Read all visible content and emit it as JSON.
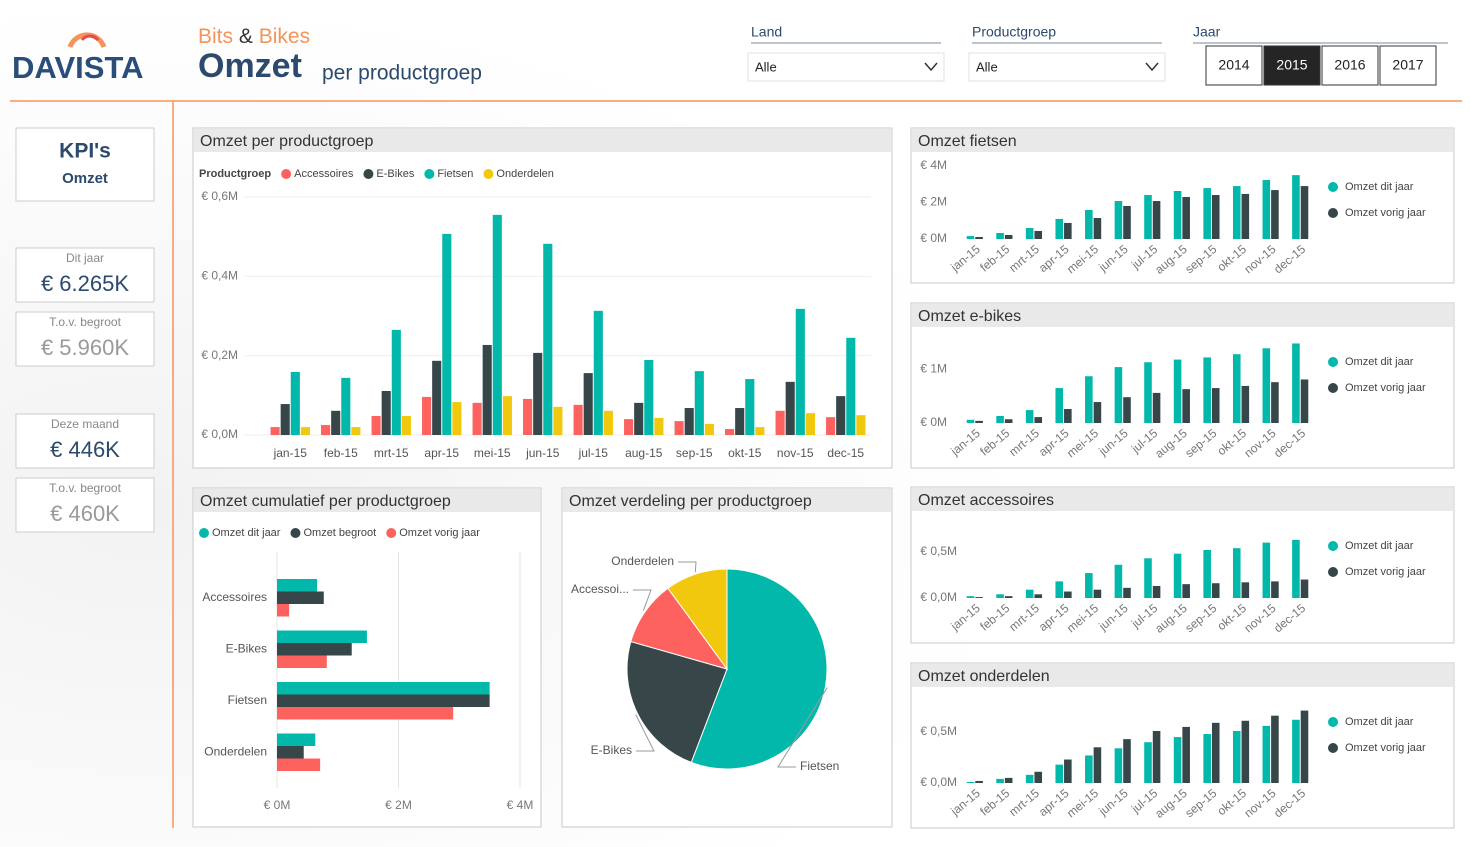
{
  "header": {
    "logo": "DAVISTA",
    "brand_1": "Bits",
    "brand_amp": "&",
    "brand_2": "Bikes",
    "title": "Omzet",
    "subtitle": "per productgroep"
  },
  "filters": {
    "land": {
      "label": "Land",
      "value": "Alle"
    },
    "productgroep": {
      "label": "Productgroep",
      "value": "Alle"
    },
    "jaar": {
      "label": "Jaar",
      "options": [
        "2014",
        "2015",
        "2016",
        "2017"
      ],
      "selected": "2015"
    }
  },
  "kpis": {
    "title": "KPI's",
    "subtitle": "Omzet",
    "cards": [
      {
        "label": "Dit jaar",
        "value": "€ 6.265K"
      },
      {
        "label": "T.o.v. begroot",
        "value": "€ 5.960K"
      },
      {
        "label": "Deze maand",
        "value": "€ 446K"
      },
      {
        "label": "T.o.v. begroot",
        "value": "€ 460K"
      }
    ]
  },
  "chart_data": [
    {
      "type": "bar",
      "title": "Omzet per productgroep",
      "legend_title": "Productgroep",
      "legend": "top",
      "grid": true,
      "categories": [
        "jan-15",
        "feb-15",
        "mrt-15",
        "apr-15",
        "mei-15",
        "jun-15",
        "jul-15",
        "aug-15",
        "sep-15",
        "okt-15",
        "nov-15",
        "dec-15"
      ],
      "series": [
        {
          "name": "Accessoires",
          "color": "#fd625e",
          "values": [
            0.02,
            0.025,
            0.048,
            0.096,
            0.081,
            0.091,
            0.076,
            0.04,
            0.035,
            0.015,
            0.061,
            0.045
          ]
        },
        {
          "name": "E-Bikes",
          "color": "#374649",
          "values": [
            0.078,
            0.061,
            0.111,
            0.187,
            0.227,
            0.207,
            0.156,
            0.081,
            0.068,
            0.068,
            0.134,
            0.098
          ]
        },
        {
          "name": "Fietsen",
          "color": "#01b8aa",
          "values": [
            0.159,
            0.144,
            0.265,
            0.507,
            0.555,
            0.482,
            0.313,
            0.189,
            0.161,
            0.141,
            0.318,
            0.245
          ]
        },
        {
          "name": "Onderdelen",
          "color": "#f2c80f",
          "values": [
            0.02,
            0.02,
            0.048,
            0.083,
            0.098,
            0.071,
            0.061,
            0.043,
            0.028,
            0.02,
            0.055,
            0.05
          ]
        }
      ],
      "ylim": [
        0,
        0.6
      ],
      "yticks": [
        {
          "value": 0,
          "label": "€ 0,0M"
        },
        {
          "value": 0.2,
          "label": "€ 0,2M"
        },
        {
          "value": 0.4,
          "label": "€ 0,4M"
        },
        {
          "value": 0.6,
          "label": "€ 0,6M"
        }
      ]
    },
    {
      "type": "hbar",
      "title": "Omzet cumulatief per productgroep",
      "legend": "top",
      "grid": true,
      "categories": [
        "Accessoires",
        "E-Bikes",
        "Fietsen",
        "Onderdelen"
      ],
      "series": [
        {
          "name": "Omzet dit jaar",
          "color": "#01b8aa",
          "values": [
            0.66,
            1.48,
            3.5,
            0.63
          ]
        },
        {
          "name": "Omzet begroot",
          "color": "#374649",
          "values": [
            0.77,
            1.23,
            3.5,
            0.44
          ]
        },
        {
          "name": "Omzet vorig jaar",
          "color": "#fd625e",
          "values": [
            0.2,
            0.82,
            2.9,
            0.71
          ]
        }
      ],
      "xlim": [
        0,
        4
      ],
      "xticks": [
        {
          "value": 0,
          "label": "€ 0M"
        },
        {
          "value": 2,
          "label": "€ 2M"
        },
        {
          "value": 4,
          "label": "€ 4M"
        }
      ]
    },
    {
      "type": "pie",
      "title": "Omzet verdeling per productgroep",
      "categories": [
        "Fietsen",
        "E-Bikes",
        "Accessoi...",
        "Onderdelen"
      ],
      "values": [
        3.5,
        1.48,
        0.66,
        0.63
      ],
      "colors": [
        "#01b8aa",
        "#374649",
        "#fd625e",
        "#f2c80f"
      ]
    },
    {
      "type": "bar",
      "title": "Omzet fietsen",
      "legend": "right",
      "grid": false,
      "categories": [
        "jan-15",
        "feb-15",
        "mrt-15",
        "apr-15",
        "mei-15",
        "jun-15",
        "jul-15",
        "aug-15",
        "sep-15",
        "okt-15",
        "nov-15",
        "dec-15"
      ],
      "series": [
        {
          "name": "Omzet dit jaar",
          "color": "#01b8aa",
          "values": [
            0.16,
            0.33,
            0.6,
            1.1,
            1.59,
            2.08,
            2.41,
            2.63,
            2.79,
            2.9,
            3.23,
            3.5
          ]
        },
        {
          "name": "Omzet vorig jaar",
          "color": "#374649",
          "values": [
            0.11,
            0.22,
            0.44,
            0.88,
            1.15,
            1.81,
            2.08,
            2.3,
            2.41,
            2.47,
            2.68,
            2.9
          ]
        }
      ],
      "ylim": [
        0,
        4
      ],
      "yticks": [
        {
          "value": 0,
          "label": "€ 0M"
        },
        {
          "value": 2,
          "label": "€ 2M"
        },
        {
          "value": 4,
          "label": "€ 4M"
        }
      ]
    },
    {
      "type": "bar",
      "title": "Omzet e-bikes",
      "legend": "right",
      "grid": false,
      "categories": [
        "jan-15",
        "feb-15",
        "mrt-15",
        "apr-15",
        "mei-15",
        "jun-15",
        "jul-15",
        "aug-15",
        "sep-15",
        "okt-15",
        "nov-15",
        "dec-15"
      ],
      "series": [
        {
          "name": "Omzet dit jaar",
          "color": "#01b8aa",
          "values": [
            0.06,
            0.13,
            0.24,
            0.65,
            0.87,
            1.04,
            1.13,
            1.18,
            1.22,
            1.28,
            1.39,
            1.48
          ]
        },
        {
          "name": "Omzet vorig jaar",
          "color": "#374649",
          "values": [
            0.04,
            0.07,
            0.11,
            0.26,
            0.39,
            0.48,
            0.56,
            0.63,
            0.65,
            0.69,
            0.76,
            0.81
          ]
        }
      ],
      "ylim": [
        0,
        1.6
      ],
      "yticks": [
        {
          "value": 0,
          "label": "€ 0M"
        },
        {
          "value": 1,
          "label": "€ 1M"
        }
      ]
    },
    {
      "type": "bar",
      "title": "Omzet accessoires",
      "legend": "right",
      "grid": false,
      "categories": [
        "jan-15",
        "feb-15",
        "mrt-15",
        "apr-15",
        "mei-15",
        "jun-15",
        "jul-15",
        "aug-15",
        "sep-15",
        "okt-15",
        "nov-15",
        "dec-15"
      ],
      "series": [
        {
          "name": "Omzet dit jaar",
          "color": "#01b8aa",
          "values": [
            0.02,
            0.04,
            0.09,
            0.18,
            0.27,
            0.36,
            0.43,
            0.48,
            0.52,
            0.54,
            0.6,
            0.63
          ]
        },
        {
          "name": "Omzet vorig jaar",
          "color": "#374649",
          "values": [
            0.01,
            0.02,
            0.04,
            0.07,
            0.09,
            0.11,
            0.13,
            0.15,
            0.16,
            0.17,
            0.18,
            0.2
          ]
        }
      ],
      "ylim": [
        0,
        0.65
      ],
      "yticks": [
        {
          "value": 0,
          "label": "€ 0,0M"
        },
        {
          "value": 0.5,
          "label": "€ 0,5M"
        }
      ]
    },
    {
      "type": "bar",
      "title": "Omzet onderdelen",
      "legend": "right",
      "grid": false,
      "categories": [
        "jan-15",
        "feb-15",
        "mrt-15",
        "apr-15",
        "mei-15",
        "jun-15",
        "jul-15",
        "aug-15",
        "sep-15",
        "okt-15",
        "nov-15",
        "dec-15"
      ],
      "series": [
        {
          "name": "Omzet dit jaar",
          "color": "#01b8aa",
          "values": [
            0.01,
            0.04,
            0.08,
            0.18,
            0.27,
            0.34,
            0.4,
            0.45,
            0.48,
            0.51,
            0.56,
            0.62
          ]
        },
        {
          "name": "Omzet vorig jaar",
          "color": "#374649",
          "values": [
            0.02,
            0.05,
            0.11,
            0.23,
            0.35,
            0.43,
            0.51,
            0.55,
            0.59,
            0.61,
            0.66,
            0.71
          ]
        }
      ],
      "ylim": [
        0,
        0.75
      ],
      "yticks": [
        {
          "value": 0,
          "label": "€ 0,0M"
        },
        {
          "value": 0.5,
          "label": "€ 0,5M"
        }
      ]
    }
  ]
}
